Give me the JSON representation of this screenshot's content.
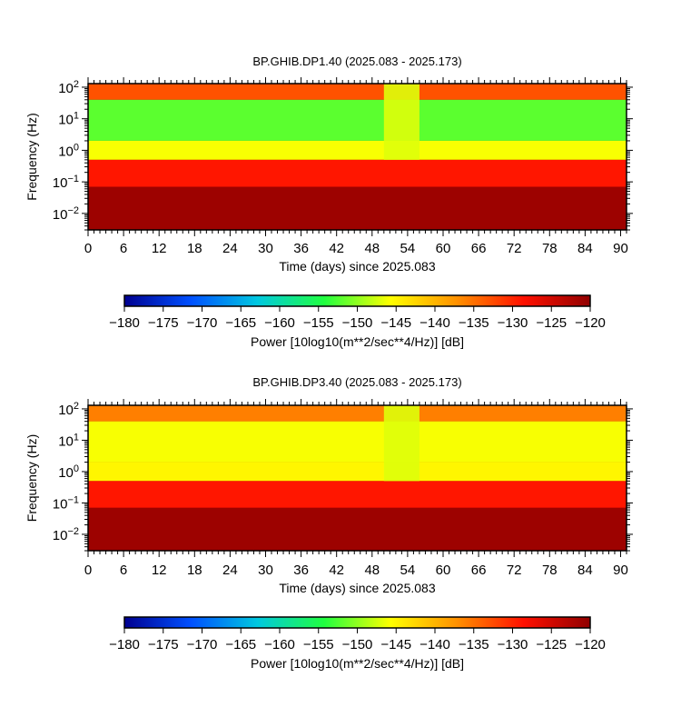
{
  "chart_data": [
    {
      "type": "heatmap",
      "title": "BP.GHIB.DP1.40 (2025.083 - 2025.173)",
      "xlabel": "Time (days) since 2025.083",
      "ylabel": "Frequency (Hz)",
      "x_ticks": [
        "0",
        "6",
        "12",
        "18",
        "24",
        "30",
        "36",
        "42",
        "48",
        "54",
        "60",
        "66",
        "72",
        "78",
        "84",
        "90"
      ],
      "y_ticks": [
        {
          "base": "10",
          "exp": "2"
        },
        {
          "base": "10",
          "exp": "1"
        },
        {
          "base": "10",
          "exp": "0"
        },
        {
          "base": "10",
          "exp": "−1"
        },
        {
          "base": "10",
          "exp": "−2"
        }
      ],
      "xlim": [
        0,
        91
      ],
      "ylim": [
        0.003,
        130
      ],
      "yscale": "log",
      "gap_days": [
        50,
        56
      ],
      "bands": [
        {
          "f_low": 40,
          "f_high": 130,
          "db": -133
        },
        {
          "f_low": 2,
          "f_high": 40,
          "db": -152
        },
        {
          "f_low": 0.5,
          "f_high": 2,
          "db": -146
        },
        {
          "f_low": 0.07,
          "f_high": 0.5,
          "db": -129
        },
        {
          "f_low": 0.003,
          "f_high": 0.07,
          "db": -121
        }
      ],
      "colorbar": {
        "min": -180,
        "max": -120,
        "ticks": [
          "−180",
          "−175",
          "−170",
          "−165",
          "−160",
          "−155",
          "−150",
          "−145",
          "−140",
          "−135",
          "−130",
          "−125",
          "−120"
        ],
        "label": "Power [10log10(m**2/sec**4/Hz)] [dB]",
        "colors": [
          "#000090",
          "#0050ff",
          "#00c8e0",
          "#20ff40",
          "#ffff00",
          "#ff9000",
          "#ff1000",
          "#900000"
        ]
      }
    },
    {
      "type": "heatmap",
      "title": "BP.GHIB.DP3.40 (2025.083 - 2025.173)",
      "xlabel": "Time (days) since 2025.083",
      "ylabel": "Frequency (Hz)",
      "x_ticks": [
        "0",
        "6",
        "12",
        "18",
        "24",
        "30",
        "36",
        "42",
        "48",
        "54",
        "60",
        "66",
        "72",
        "78",
        "84",
        "90"
      ],
      "y_ticks": [
        {
          "base": "10",
          "exp": "2"
        },
        {
          "base": "10",
          "exp": "1"
        },
        {
          "base": "10",
          "exp": "0"
        },
        {
          "base": "10",
          "exp": "−1"
        },
        {
          "base": "10",
          "exp": "−2"
        }
      ],
      "xlim": [
        0,
        91
      ],
      "ylim": [
        0.003,
        130
      ],
      "yscale": "log",
      "gap_days": [
        50,
        56
      ],
      "bands": [
        {
          "f_low": 40,
          "f_high": 130,
          "db": -136
        },
        {
          "f_low": 2,
          "f_high": 40,
          "db": -146
        },
        {
          "f_low": 0.5,
          "f_high": 2,
          "db": -145
        },
        {
          "f_low": 0.07,
          "f_high": 0.5,
          "db": -129
        },
        {
          "f_low": 0.003,
          "f_high": 0.07,
          "db": -121
        }
      ],
      "colorbar": {
        "min": -180,
        "max": -120,
        "ticks": [
          "−180",
          "−175",
          "−170",
          "−165",
          "−160",
          "−155",
          "−150",
          "−145",
          "−140",
          "−135",
          "−130",
          "−125",
          "−120"
        ],
        "label": "Power [10log10(m**2/sec**4/Hz)] [dB]",
        "colors": [
          "#000090",
          "#0050ff",
          "#00c8e0",
          "#20ff40",
          "#ffff00",
          "#ff9000",
          "#ff1000",
          "#900000"
        ]
      }
    }
  ]
}
